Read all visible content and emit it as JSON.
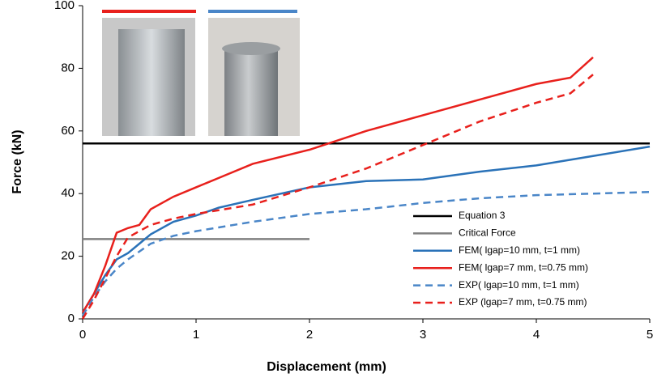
{
  "chart_data": {
    "type": "line",
    "x_label": "Displacement (mm)",
    "y_label": "Force (kN)",
    "xlim": [
      0,
      5
    ],
    "xticks": [
      0,
      1,
      2,
      3,
      4,
      5
    ],
    "ylim": [
      0,
      100
    ],
    "yticks": [
      0,
      20,
      40,
      60,
      80,
      100
    ],
    "legend": "lower right",
    "series": [
      {
        "name": "Equation 3",
        "color": "#000000",
        "dash": false,
        "x": [
          0,
          5
        ],
        "values": [
          56,
          56
        ]
      },
      {
        "name": "Critical Force",
        "color": "#808080",
        "dash": false,
        "x": [
          0,
          2
        ],
        "values": [
          25.5,
          25.5
        ]
      },
      {
        "name": "FEM( lgap=10 mm, t=1 mm)",
        "color": "#2a72b8",
        "dash": false,
        "x": [
          0,
          0.1,
          0.2,
          0.3,
          0.4,
          0.5,
          0.6,
          0.8,
          1,
          1.2,
          1.5,
          2,
          2.5,
          3,
          3.5,
          4,
          4.5,
          5
        ],
        "values": [
          2,
          8,
          14,
          19,
          21,
          24,
          27,
          31,
          33,
          35.5,
          38,
          42,
          44,
          44.5,
          47,
          49,
          52,
          55
        ]
      },
      {
        "name": "FEM( lgap=7 mm, t=0.75 mm)",
        "color": "#e8201c",
        "dash": false,
        "x": [
          0,
          0.1,
          0.2,
          0.3,
          0.4,
          0.5,
          0.6,
          0.8,
          1,
          1.2,
          1.5,
          2,
          2.5,
          3,
          3.5,
          4,
          4.3,
          4.5
        ],
        "values": [
          2,
          8,
          17,
          27.5,
          29,
          30,
          35,
          39,
          42,
          45,
          49.5,
          54,
          60,
          65,
          70,
          75,
          77,
          83.5
        ]
      },
      {
        "name": "EXP( lgap=10 mm, t=1 mm)",
        "color": "#4a86c8",
        "dash": true,
        "x": [
          0,
          0.1,
          0.2,
          0.3,
          0.4,
          0.6,
          0.8,
          1,
          1.5,
          2,
          2.5,
          3,
          3.5,
          4,
          4.5,
          5
        ],
        "values": [
          1,
          7,
          12,
          16,
          19,
          24,
          26.5,
          28,
          31,
          33.5,
          35,
          37,
          38.5,
          39.5,
          40,
          40.5
        ]
      },
      {
        "name": "EXP (lgap=7 mm, t=0.75 mm)",
        "color": "#e8201c",
        "dash": true,
        "x": [
          0,
          0.1,
          0.2,
          0.3,
          0.4,
          0.6,
          0.8,
          1,
          1.5,
          2,
          2.5,
          3,
          3.5,
          4,
          4.3,
          4.5
        ],
        "values": [
          0,
          6,
          13,
          20,
          26,
          30,
          32,
          33.5,
          36.5,
          42,
          48,
          55.5,
          63,
          69,
          72,
          78
        ]
      }
    ]
  }
}
